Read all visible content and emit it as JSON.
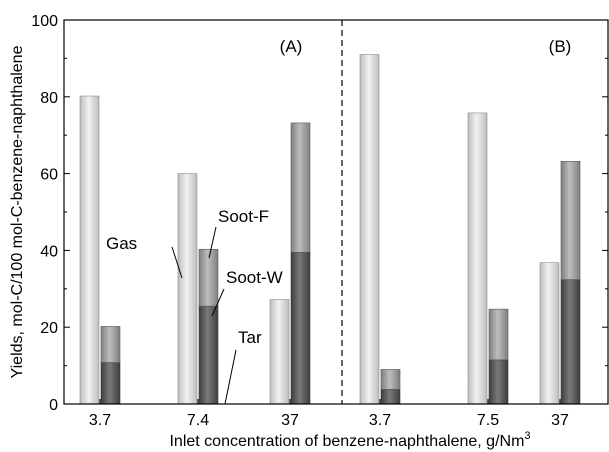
{
  "chart_data": {
    "type": "bar",
    "xlabel": "Inlet concentration of benzene-naphthalene, g/Nm",
    "xlabel_superscript": "3",
    "ylabel": "Yields, mol-C/100 mol-C-benzene-naphthalene",
    "ylim": [
      0,
      100
    ],
    "yticks": [
      "0",
      "20",
      "40",
      "60",
      "80",
      "100"
    ],
    "grid": false,
    "panels": [
      "(A)",
      "(B)"
    ],
    "categories": [
      "3.7",
      "7.4",
      "37",
      "3.7",
      "7.5",
      "37"
    ],
    "category_panels": [
      "A",
      "A",
      "A",
      "B",
      "B",
      "B"
    ],
    "series": [
      {
        "name": "Gas",
        "values": [
          80.2,
          60.0,
          27.2,
          91.0,
          75.8,
          36.8
        ]
      },
      {
        "name": "Tar",
        "values": [
          0,
          0,
          0,
          0,
          0,
          0
        ]
      },
      {
        "name": "Soot-W",
        "values": [
          10.8,
          25.5,
          39.5,
          3.8,
          11.5,
          32.4
        ]
      },
      {
        "name": "Soot-F",
        "values": [
          9.4,
          14.8,
          33.7,
          5.2,
          13.2,
          30.8
        ]
      }
    ],
    "annotations": [
      "Gas",
      "Soot-F",
      "Soot-W",
      "Tar"
    ],
    "colors": {
      "gas": "#d8d8d8",
      "soot_f": "#a0a0a0",
      "soot_w": "#5e5e5e",
      "frame": "#000000"
    }
  }
}
